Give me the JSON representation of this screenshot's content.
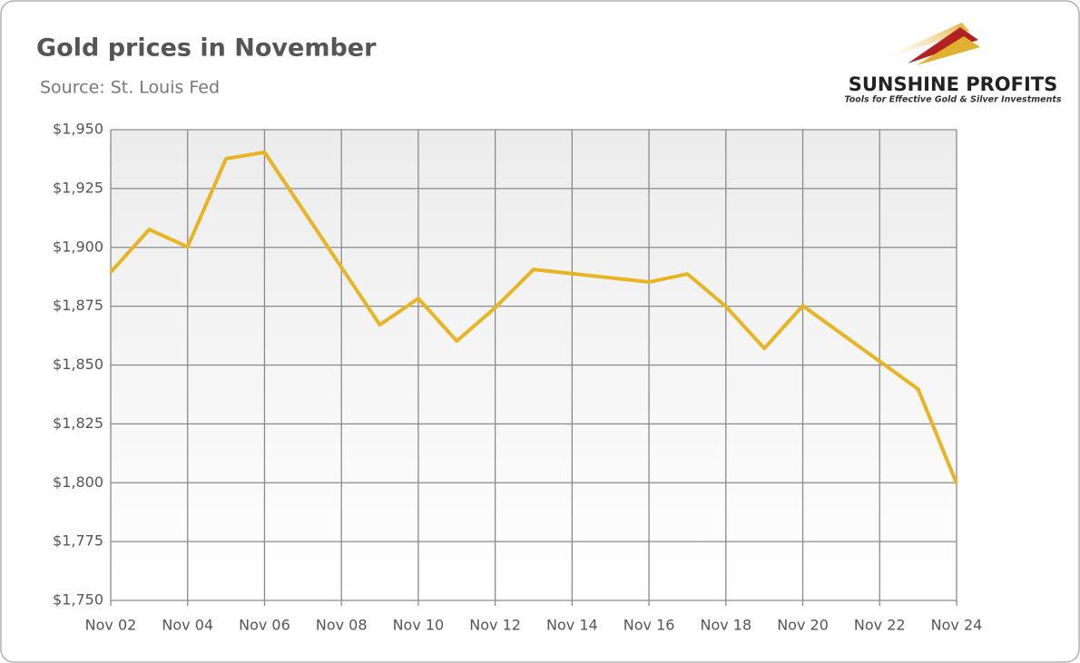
{
  "chart_data": {
    "type": "line",
    "title": "Gold prices in November",
    "subtitle": "Source: St. Louis Fed",
    "logo": {
      "name": "SUNSHINE PROFITS",
      "tagline": "Tools for Effective Gold & Silver Investments"
    },
    "x": [
      "Nov 02",
      "Nov 03",
      "Nov 04",
      "Nov 05",
      "Nov 06",
      "Nov 09",
      "Nov 10",
      "Nov 11",
      "Nov 12",
      "Nov 13",
      "Nov 16",
      "Nov 17",
      "Nov 18",
      "Nov 19",
      "Nov 20",
      "Nov 23",
      "Nov 24"
    ],
    "series": [
      {
        "color": "#e9b424",
        "values": [
          1889.5,
          1907.6,
          1900.2,
          1937.7,
          1940.4,
          1867.1,
          1878.3,
          1860.2,
          1874.4,
          1890.6,
          1885.3,
          1888.7,
          1874.9,
          1857.1,
          1875.2,
          1839.8,
          1799.7
        ]
      }
    ],
    "xlim": [
      "Nov 02",
      "Nov 24"
    ],
    "xticks": [
      "Nov 02",
      "Nov 04",
      "Nov 06",
      "Nov 08",
      "Nov 10",
      "Nov 12",
      "Nov 14",
      "Nov 16",
      "Nov 18",
      "Nov 20",
      "Nov 22",
      "Nov 24"
    ],
    "ylim": [
      1750,
      1950
    ],
    "yticks": [
      {
        "value": 1750,
        "label": "$1,750"
      },
      {
        "value": 1775,
        "label": "$1,775"
      },
      {
        "value": 1800,
        "label": "$1,800"
      },
      {
        "value": 1825,
        "label": "$1,825"
      },
      {
        "value": 1850,
        "label": "$1,850"
      },
      {
        "value": 1875,
        "label": "$1,875"
      },
      {
        "value": 1900,
        "label": "$1,900"
      },
      {
        "value": 1925,
        "label": "$1,925"
      },
      {
        "value": 1950,
        "label": "$1,950"
      }
    ],
    "grid": true
  }
}
